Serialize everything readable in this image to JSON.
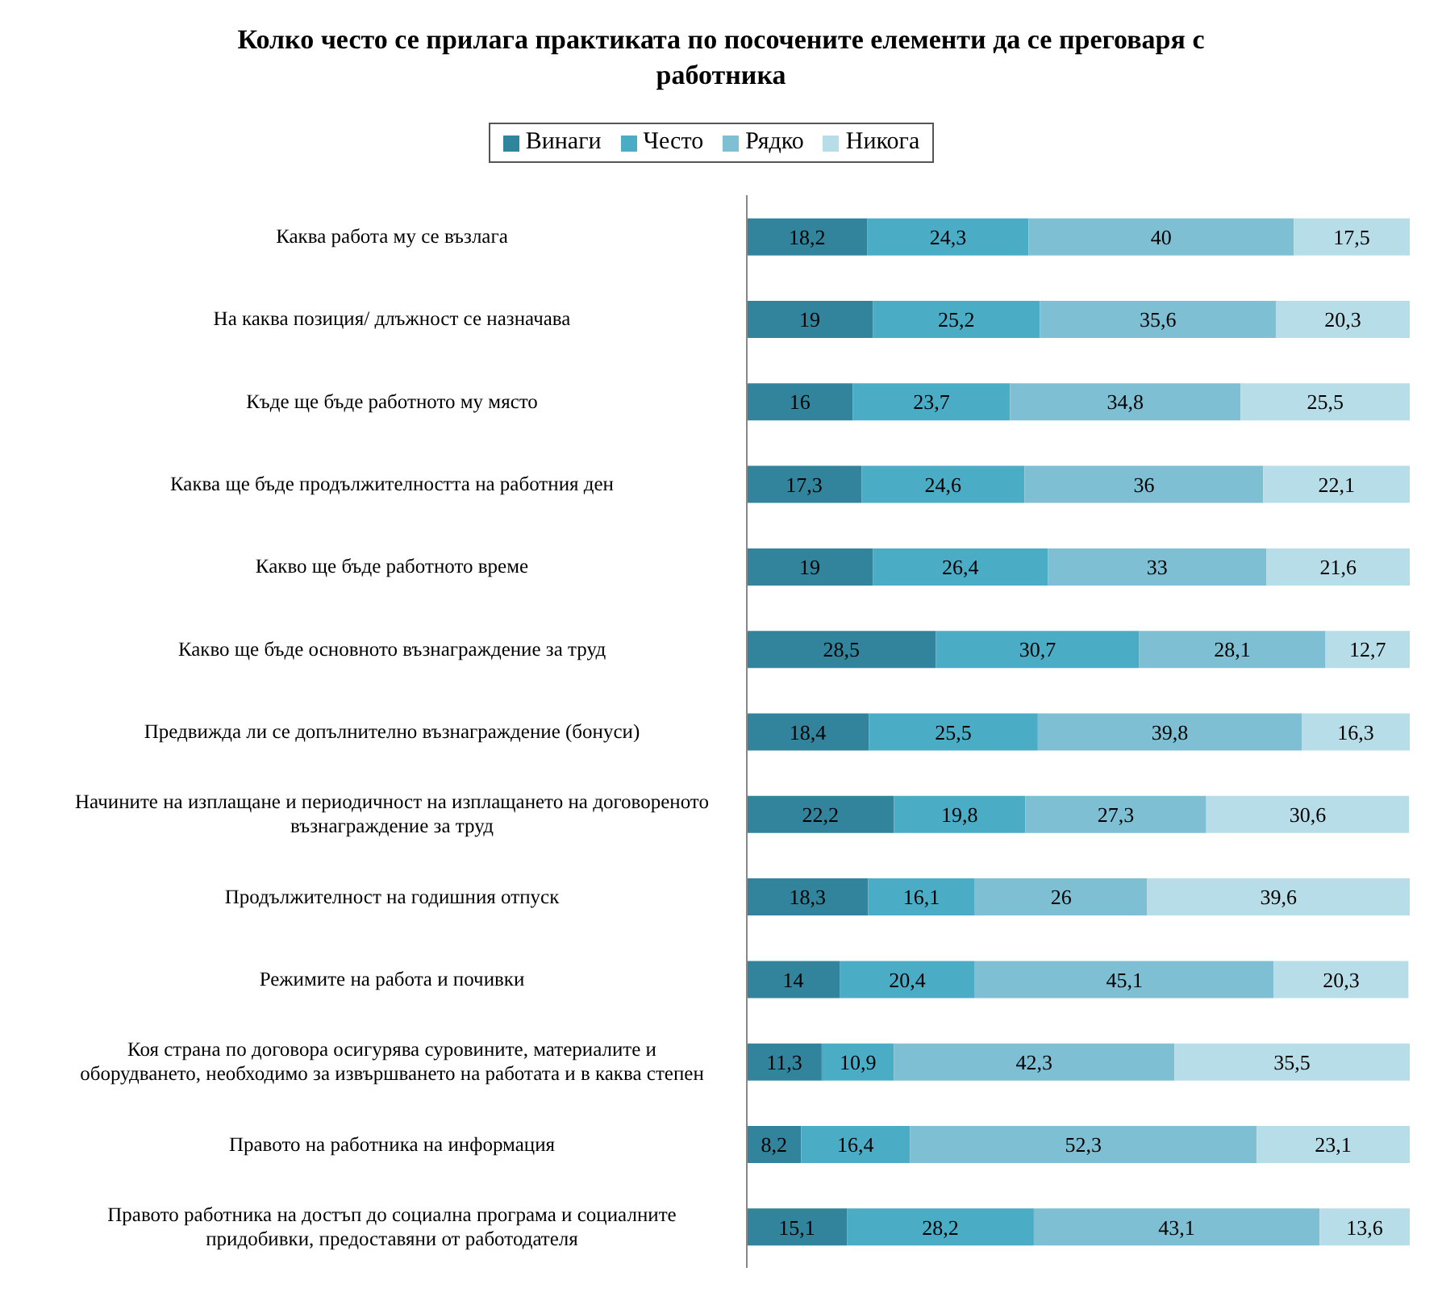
{
  "chart_data": {
    "type": "bar",
    "orientation": "horizontal",
    "stacked": true,
    "title": "Колко често се прилага практиката по посочените елементи да се преговаря с работника",
    "categories": [
      "Каква работа му се възлага",
      "На каква позиция/ длъжност се назначава",
      "Къде ще бъде работното му място",
      "Каква ще бъде продължителността на работния ден",
      "Какво ще бъде работното време",
      "Какво ще бъде основното възнаграждение за труд",
      "Предвижда ли се допълнително възнаграждение (бонуси)",
      "Начините на изплащане и периодичност на изплащането на договореното възнаграждение за труд",
      "Продължителност на годишния отпуск",
      "Режимите на работа и почивки",
      "Коя страна по договора осигурява суровините, материалите и оборудването, необходимо за извършването на работата и в каква степен",
      "Правото на работника на информация",
      "Правото работника на достъп до социална програма и социалните придобивки, предоставяни от работодателя"
    ],
    "series": [
      {
        "name": "Винаги",
        "color": "#31849b",
        "values": [
          18.2,
          19,
          16,
          17.3,
          19,
          28.5,
          18.4,
          22.2,
          18.3,
          14,
          11.3,
          8.2,
          15.1
        ],
        "value_labels": [
          "18,2",
          "19",
          "16",
          "17,3",
          "19",
          "28,5",
          "18,4",
          "22,2",
          "18,3",
          "14",
          "11,3",
          "8,2",
          "15,1"
        ]
      },
      {
        "name": "Често",
        "color": "#4bacc6",
        "values": [
          24.3,
          25.2,
          23.7,
          24.6,
          26.4,
          30.7,
          25.5,
          19.8,
          16.1,
          20.4,
          10.9,
          16.4,
          28.2
        ],
        "value_labels": [
          "24,3",
          "25,2",
          "23,7",
          "24,6",
          "26,4",
          "30,7",
          "25,5",
          "19,8",
          "16,1",
          "20,4",
          "10,9",
          "16,4",
          "28,2"
        ]
      },
      {
        "name": "Рядко",
        "color": "#7fbfd3",
        "values": [
          40,
          35.6,
          34.8,
          36,
          33,
          28.1,
          39.8,
          27.3,
          26,
          45.1,
          42.3,
          52.3,
          43.1
        ],
        "value_labels": [
          "40",
          "35,6",
          "34,8",
          "36",
          "33",
          "28,1",
          "39,8",
          "27,3",
          "26",
          "45,1",
          "42,3",
          "52,3",
          "43,1"
        ]
      },
      {
        "name": "Никога",
        "color": "#b7dde8",
        "values": [
          17.5,
          20.3,
          25.5,
          22.1,
          21.6,
          12.7,
          16.3,
          30.6,
          39.6,
          20.3,
          35.5,
          23.1,
          13.6
        ],
        "value_labels": [
          "17,5",
          "20,3",
          "25,5",
          "22,1",
          "21,6",
          "12,7",
          "16,3",
          "30,6",
          "39,6",
          "20,3",
          "35,5",
          "23,1",
          "13,6"
        ]
      }
    ],
    "xlim": [
      0,
      100
    ],
    "tick_labels": "y",
    "legend": "top"
  }
}
